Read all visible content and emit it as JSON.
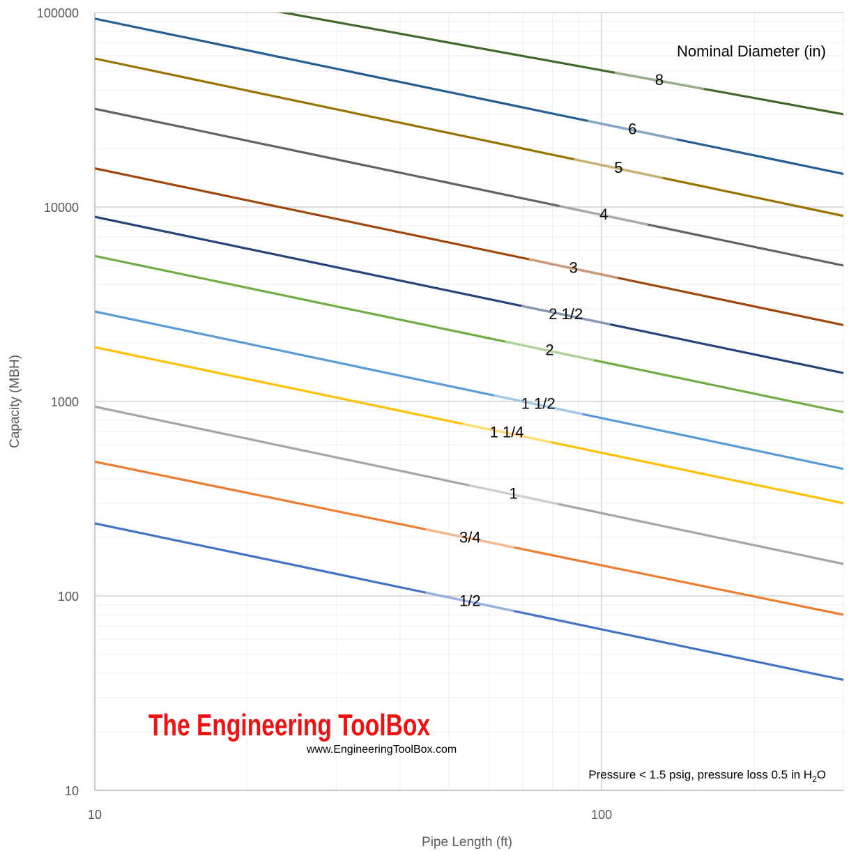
{
  "chart_data": {
    "type": "line",
    "x_scale": "log",
    "y_scale": "log",
    "xlim": [
      10,
      300
    ],
    "ylim": [
      10,
      100000
    ],
    "x_ticks": [
      "10",
      "100"
    ],
    "y_ticks": [
      "10",
      "100",
      "1000",
      "10000",
      "100000"
    ],
    "xlabel": "Pipe Length (ft)",
    "ylabel": "Capacity (MBH)",
    "grid": "major and minor",
    "legend_title": "Nominal Diameter (in)",
    "note_parts": [
      "Pressure < 1.5 psig, pressure loss 0.5 in H",
      "2",
      "O"
    ],
    "watermark": {
      "title": "The Engineering ToolBox",
      "url": "www.EngineeringToolBox.com"
    },
    "series": [
      {
        "name": "1/2",
        "color": "#4472c4",
        "x": [
          10,
          300
        ],
        "y": [
          236,
          37
        ],
        "label_at": 55
      },
      {
        "name": "3/4",
        "color": "#ed7d31",
        "x": [
          10,
          300
        ],
        "y": [
          490,
          80
        ],
        "label_at": 55
      },
      {
        "name": "1",
        "color": "#a5a5a5",
        "x": [
          10,
          300
        ],
        "y": [
          940,
          146
        ],
        "label_at": 67
      },
      {
        "name": "1 1/4",
        "color": "#ffc000",
        "x": [
          10,
          300
        ],
        "y": [
          1900,
          300
        ],
        "label_at": 65
      },
      {
        "name": "1 1/2",
        "color": "#5b9bd5",
        "x": [
          10,
          300
        ],
        "y": [
          2900,
          450
        ],
        "label_at": 75
      },
      {
        "name": "2",
        "color": "#70ad47",
        "x": [
          10,
          300
        ],
        "y": [
          5600,
          880
        ],
        "label_at": 79
      },
      {
        "name": "2 1/2",
        "color": "#264478",
        "x": [
          10,
          300
        ],
        "y": [
          8900,
          1400
        ],
        "label_at": 85
      },
      {
        "name": "3",
        "color": "#9e480e",
        "x": [
          10,
          300
        ],
        "y": [
          15800,
          2470
        ],
        "label_at": 88
      },
      {
        "name": "4",
        "color": "#636363",
        "x": [
          10,
          300
        ],
        "y": [
          32000,
          5000
        ],
        "label_at": 101
      },
      {
        "name": "5",
        "color": "#997300",
        "x": [
          10,
          300
        ],
        "y": [
          58000,
          9000
        ],
        "label_at": 108
      },
      {
        "name": "6",
        "color": "#255e91",
        "x": [
          10,
          300
        ],
        "y": [
          93000,
          14800
        ],
        "label_at": 115
      },
      {
        "name": "8",
        "color": "#43682b",
        "x": [
          10,
          300
        ],
        "y": [
          150000,
          30000
        ],
        "label_at": 130
      }
    ]
  }
}
